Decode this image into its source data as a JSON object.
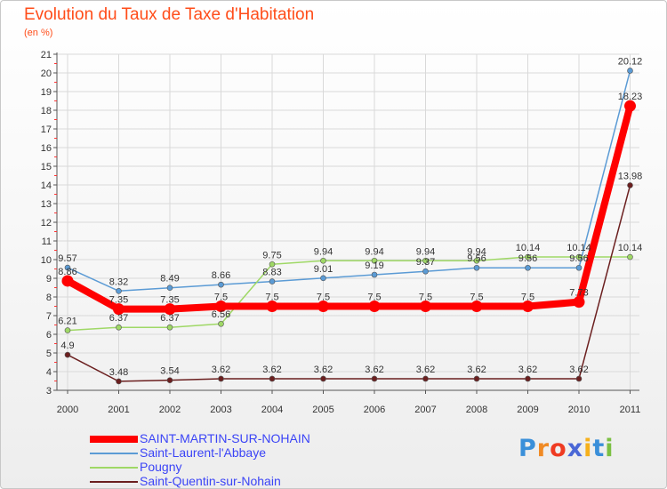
{
  "chart_data": {
    "type": "line",
    "title": "Evolution du Taux de Taxe d'Habitation",
    "ylabel": "(en %)",
    "xlabel": "",
    "categories": [
      "2000",
      "2001",
      "2002",
      "2003",
      "2004",
      "2005",
      "2006",
      "2007",
      "2008",
      "2009",
      "2010",
      "2011"
    ],
    "ylim": [
      3,
      21
    ],
    "yticks": [
      3,
      4,
      5,
      6,
      7,
      8,
      9,
      10,
      11,
      12,
      13,
      14,
      15,
      16,
      17,
      18,
      19,
      20,
      21
    ],
    "series": [
      {
        "name": "Saint-Laurent-l'Abbaye",
        "color": "#5b9bd5",
        "values": [
          9.57,
          8.32,
          8.49,
          8.66,
          8.83,
          9.01,
          9.19,
          9.37,
          9.56,
          9.56,
          9.56,
          20.12
        ],
        "labels": [
          "9.57",
          "8.32",
          "8.49",
          "8.66",
          "8.83",
          "9.01",
          "9.19",
          "9.37",
          "9.56",
          "9.56",
          "9.56",
          "20.12"
        ]
      },
      {
        "name": "Pougny",
        "color": "#9fd866",
        "values": [
          6.21,
          6.37,
          6.37,
          6.56,
          9.75,
          9.94,
          9.94,
          9.94,
          9.94,
          10.14,
          10.14,
          10.14
        ],
        "labels": [
          "6.21",
          "6.37",
          "6.37",
          "6.56",
          "9.75",
          "9.94",
          "9.94",
          "9.94",
          "9.94",
          "10.14",
          "10.14",
          "10.14"
        ]
      },
      {
        "name": "Saint-Quentin-sur-Nohain",
        "color": "#6b1f1f",
        "values": [
          4.9,
          3.48,
          3.54,
          3.62,
          3.62,
          3.62,
          3.62,
          3.62,
          3.62,
          3.62,
          3.62,
          13.98
        ],
        "labels": [
          "4.9",
          "3.48",
          "3.54",
          "3.62",
          "3.62",
          "3.62",
          "3.62",
          "3.62",
          "3.62",
          "3.62",
          "3.62",
          "13.98"
        ]
      },
      {
        "name": "SAINT-MARTIN-SUR-NOHAIN",
        "color": "#ff0000",
        "values": [
          8.86,
          7.35,
          7.35,
          7.5,
          7.5,
          7.5,
          7.5,
          7.5,
          7.5,
          7.5,
          7.73,
          18.23
        ],
        "labels": [
          "8.86",
          "7.35",
          "7.35",
          "7.5",
          "7.5",
          "7.5",
          "7.5",
          "7.5",
          "7.5",
          "7.5",
          "7.73",
          "18.23"
        ]
      }
    ],
    "legend": [
      {
        "name": "SAINT-MARTIN-SUR-NOHAIN",
        "color": "#ff0000"
      },
      {
        "name": "Saint-Laurent-l'Abbaye",
        "color": "#5b9bd5"
      },
      {
        "name": "Pougny",
        "color": "#9fd866"
      },
      {
        "name": "Saint-Quentin-sur-Nohain",
        "color": "#6b1f1f"
      }
    ],
    "legend_position": "bottom-left"
  },
  "brand": {
    "text": "Proxiti",
    "colors": [
      "#3a8fd9",
      "#f08a24",
      "#ef3b22",
      "#4a67d6",
      "#f6b01b",
      "#3a8fd9",
      "#7bc043"
    ]
  }
}
